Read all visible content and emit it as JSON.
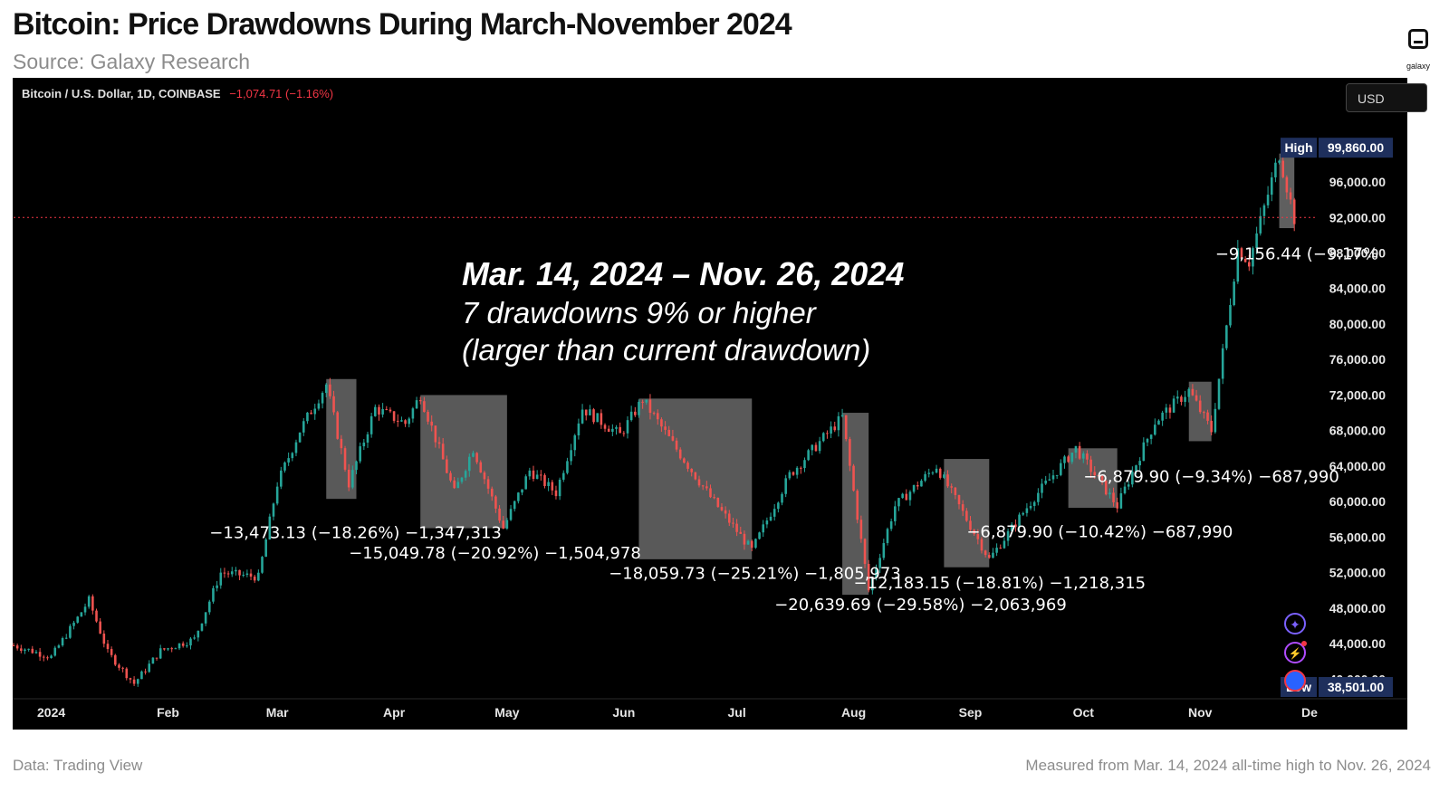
{
  "title": "Bitcoin: Price Drawdowns During March-November 2024",
  "subtitle": "Source: Galaxy Research",
  "logo_text": "galaxy",
  "footer": {
    "left": "Data: Trading View",
    "right": "Measured from Mar. 14, 2024 all-time high to Nov. 26, 2024"
  },
  "header": {
    "symbol": "Bitcoin / U.S. Dollar, 1D, COINBASE",
    "change": "−1,074.71 (−1.16%)"
  },
  "currency_button": "USD",
  "overlay": {
    "line1": "Mar. 14, 2024 – Nov. 26, 2024",
    "line2": "7 drawdowns 9% or higher",
    "line3": "(larger than current drawdown)"
  },
  "chart_data": {
    "type": "candlestick",
    "title": "Bitcoin: Price Drawdowns During March-November 2024",
    "x_tick_labels": [
      "2024",
      "Feb",
      "Mar",
      "Apr",
      "May",
      "Jun",
      "Jul",
      "Aug",
      "Sep",
      "Oct",
      "Nov",
      "De"
    ],
    "x_tick_dates": [
      "2024-01-01",
      "2024-02-01",
      "2024-03-01",
      "2024-04-01",
      "2024-05-01",
      "2024-06-01",
      "2024-07-01",
      "2024-08-01",
      "2024-09-01",
      "2024-10-01",
      "2024-11-01",
      "2024-12-01"
    ],
    "x_range": [
      "2023-12-22",
      "2024-12-01"
    ],
    "y_range": [
      38500,
      101000
    ],
    "y_ticks": [
      "96,000.00",
      "92,000.00",
      "88,000.00",
      "84,000.00",
      "80,000.00",
      "76,000.00",
      "72,000.00",
      "68,000.00",
      "64,000.00",
      "60,000.00",
      "56,000.00",
      "52,000.00",
      "48,000.00",
      "44,000.00",
      "40,000.00"
    ],
    "y_tick_values": [
      96000,
      92000,
      88000,
      84000,
      80000,
      76000,
      72000,
      68000,
      64000,
      60000,
      56000,
      52000,
      48000,
      44000,
      40000
    ],
    "high_label": "High",
    "high_value": "99,860.00",
    "low_label": "Low",
    "low_value": "38,501.00",
    "current_price_line": 92000,
    "price_path": [
      [
        "2023-12-22",
        43800
      ],
      [
        "2024-01-01",
        42500
      ],
      [
        "2024-01-08",
        46900
      ],
      [
        "2024-01-11",
        48900
      ],
      [
        "2024-01-16",
        43000
      ],
      [
        "2024-01-23",
        39500
      ],
      [
        "2024-01-30",
        43200
      ],
      [
        "2024-02-08",
        44500
      ],
      [
        "2024-02-15",
        52000
      ],
      [
        "2024-02-25",
        51500
      ],
      [
        "2024-03-01",
        62000
      ],
      [
        "2024-03-07",
        68000
      ],
      [
        "2024-03-14",
        73200
      ],
      [
        "2024-03-20",
        62000
      ],
      [
        "2024-03-27",
        70500
      ],
      [
        "2024-04-04",
        68800
      ],
      [
        "2024-04-08",
        72000
      ],
      [
        "2024-04-17",
        61000
      ],
      [
        "2024-04-22",
        66000
      ],
      [
        "2024-04-30",
        57000
      ],
      [
        "2024-05-07",
        63500
      ],
      [
        "2024-05-14",
        61000
      ],
      [
        "2024-05-21",
        70500
      ],
      [
        "2024-05-31",
        67500
      ],
      [
        "2024-06-06",
        71500
      ],
      [
        "2024-06-14",
        66500
      ],
      [
        "2024-06-24",
        60500
      ],
      [
        "2024-07-05",
        54500
      ],
      [
        "2024-07-15",
        63000
      ],
      [
        "2024-07-29",
        69500
      ],
      [
        "2024-08-05",
        50000
      ],
      [
        "2024-08-12",
        59500
      ],
      [
        "2024-08-23",
        64000
      ],
      [
        "2024-09-06",
        53500
      ],
      [
        "2024-09-18",
        60500
      ],
      [
        "2024-09-29",
        66000
      ],
      [
        "2024-10-10",
        59500
      ],
      [
        "2024-10-20",
        69000
      ],
      [
        "2024-10-29",
        72500
      ],
      [
        "2024-11-04",
        68000
      ],
      [
        "2024-11-11",
        88500
      ],
      [
        "2024-11-14",
        87000
      ],
      [
        "2024-11-22",
        99200
      ],
      [
        "2024-11-26",
        91900
      ]
    ],
    "drawdowns": [
      {
        "start": "2024-03-14",
        "end": "2024-03-22",
        "high": 73800,
        "low": 60300,
        "label": "−13,473.13 (−18.26%) −1,347,313"
      },
      {
        "start": "2024-04-08",
        "end": "2024-05-01",
        "high": 72000,
        "low": 57000,
        "label": "−15,049.78 (−20.92%) −1,504,978"
      },
      {
        "start": "2024-06-05",
        "end": "2024-07-05",
        "high": 71600,
        "low": 53500,
        "label": "−18,059.73 (−25.21%) −1,805,973"
      },
      {
        "start": "2024-07-29",
        "end": "2024-08-05",
        "high": 70000,
        "low": 49500,
        "label": "−20,639.69 (−29.58%) −2,063,969"
      },
      {
        "start": "2024-08-25",
        "end": "2024-09-06",
        "high": 64800,
        "low": 52600,
        "label": "−12,183.15 (−18.81%) −1,218,315"
      },
      {
        "start": "2024-09-27",
        "end": "2024-10-10",
        "high": 66000,
        "low": 59300,
        "label": "−6,879.90 (−10.42%) −687,990"
      },
      {
        "start": "2024-10-29",
        "end": "2024-11-04",
        "high": 73500,
        "low": 66800,
        "label": "−6,879.90 (−9.34%) −687,990"
      },
      {
        "start": "2024-11-22",
        "end": "2024-11-26",
        "high": 99200,
        "low": 90800,
        "label": "−9,156.44 (−9.17%"
      }
    ]
  },
  "side_icons": [
    "sparkle-icon",
    "lightning-icon",
    "avatar-icon"
  ]
}
